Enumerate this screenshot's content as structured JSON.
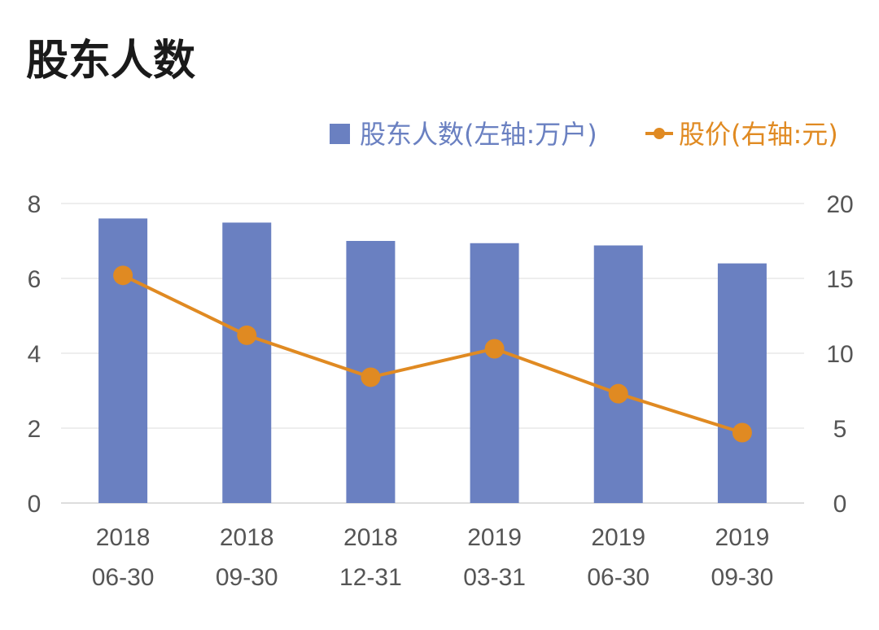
{
  "title": "股东人数",
  "chart_data": {
    "type": "bar",
    "categories": [
      [
        "2018",
        "06-30"
      ],
      [
        "2018",
        "09-30"
      ],
      [
        "2018",
        "12-31"
      ],
      [
        "2019",
        "03-31"
      ],
      [
        "2019",
        "06-30"
      ],
      [
        "2019",
        "09-30"
      ]
    ],
    "series": [
      {
        "name": "股东人数(左轴:万户)",
        "type": "bar",
        "axis": "left",
        "color": "#6a80c1",
        "values": [
          7.6,
          7.49,
          7.0,
          6.94,
          6.88,
          6.4
        ]
      },
      {
        "name": "股价(右轴:元)",
        "type": "line",
        "axis": "right",
        "color": "#e08a22",
        "values": [
          15.2,
          11.2,
          8.4,
          10.3,
          7.3,
          4.7
        ]
      }
    ],
    "left_axis": {
      "ticks": [
        "0",
        "2",
        "4",
        "6",
        "8"
      ],
      "ylim": [
        0,
        8
      ]
    },
    "right_axis": {
      "ticks": [
        "0",
        "5",
        "10",
        "15",
        "20"
      ],
      "ylim": [
        0,
        20
      ]
    },
    "grid": true,
    "legend_position": "top-right"
  }
}
